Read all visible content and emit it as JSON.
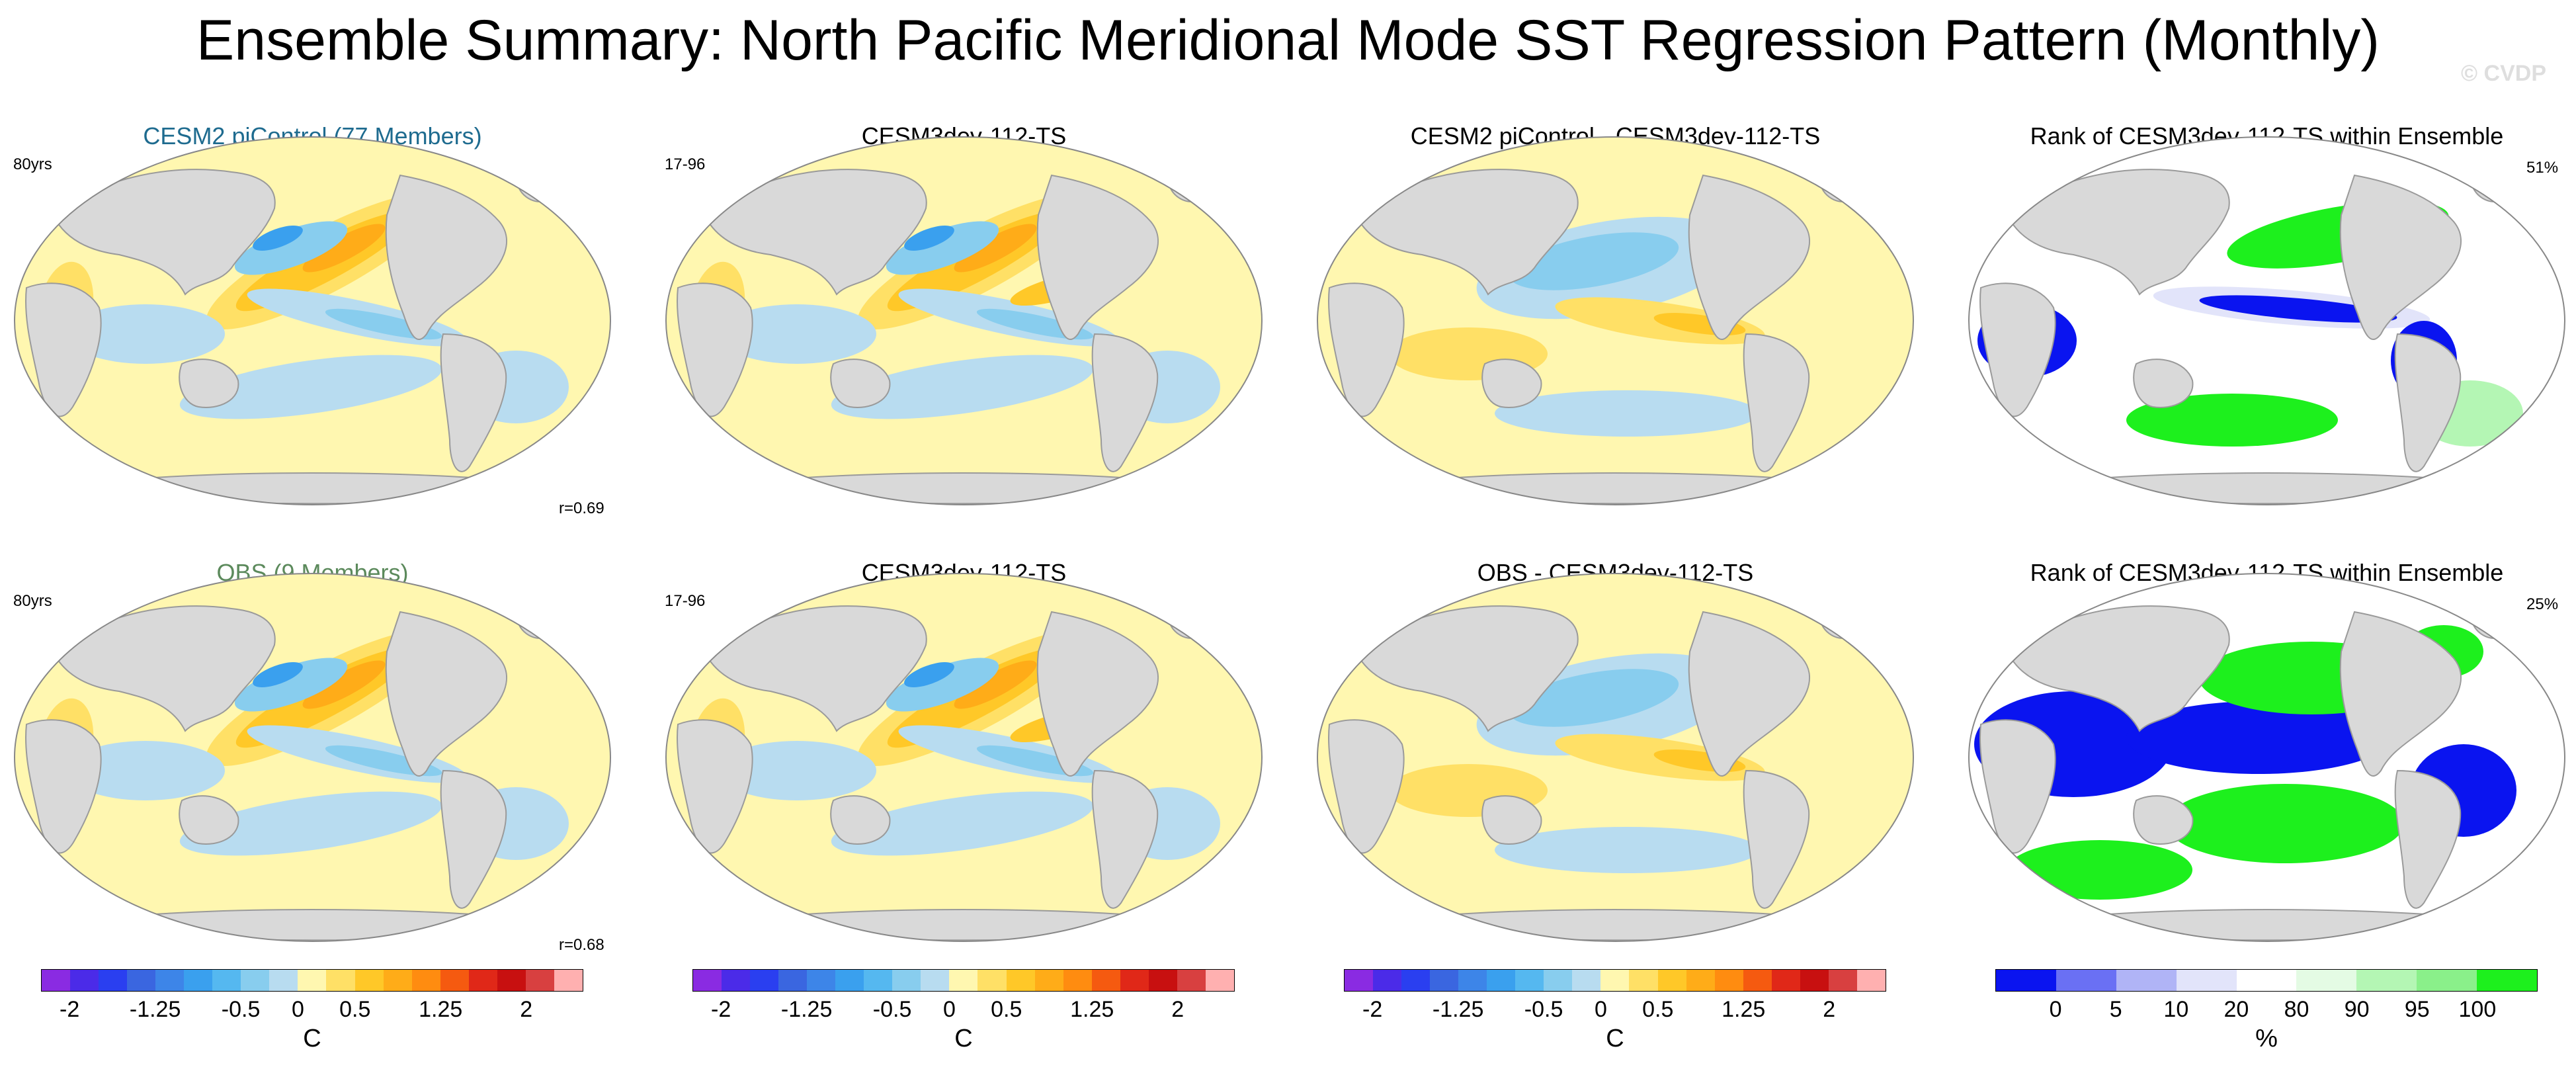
{
  "title": "Ensemble Summary: North Pacific Meridional Mode SST Regression Pattern (Monthly)",
  "watermark": "© CVDP",
  "chart_data": {
    "type": "heatmap",
    "description_type": "multi-panel global map figure",
    "rows": [
      {
        "panels": [
          {
            "title": "CESM2 piControl (77 Members)",
            "corner_label": "80yrs",
            "stat_label": "r=0.69",
            "kind": "regression"
          },
          {
            "title": "CESM3dev-112-TS",
            "corner_label": "17-96",
            "kind": "regression"
          },
          {
            "title": "CESM2 piControl - CESM3dev-112-TS",
            "kind": "difference"
          },
          {
            "title": "Rank of CESM3dev-112-TS within Ensemble",
            "corner_label": "51%",
            "kind": "rank"
          }
        ]
      },
      {
        "panels": [
          {
            "title": "OBS (9 Members)",
            "corner_label": "80yrs",
            "stat_label": "r=0.68",
            "kind": "regression"
          },
          {
            "title": "CESM3dev-112-TS",
            "corner_label": "17-96",
            "kind": "regression"
          },
          {
            "title": "OBS - CESM3dev-112-TS",
            "kind": "difference"
          },
          {
            "title": "Rank of CESM3dev-112-TS within Ensemble",
            "corner_label": "25%",
            "kind": "rank"
          }
        ]
      }
    ],
    "sst_colorbar": {
      "unit": "C",
      "tick_labels": [
        "-2",
        "-1.25",
        "-0.5",
        "0",
        "0.5",
        "1.25",
        "2"
      ],
      "levels": [
        -2,
        -1.75,
        -1.5,
        -1.25,
        -1,
        -0.75,
        -0.5,
        -0.25,
        0,
        0.25,
        0.5,
        0.75,
        1,
        1.25,
        1.5,
        1.75,
        2
      ],
      "colors": [
        "#8a2be2",
        "#4b2be8",
        "#2a3ff0",
        "#3a66e0",
        "#3d85e8",
        "#3aa0ee",
        "#55b8f0",
        "#88cdee",
        "#b8dcf0",
        "#fff7b0",
        "#ffe066",
        "#ffc828",
        "#ffac18",
        "#ff8c10",
        "#f55a10",
        "#e02818",
        "#c81010",
        "#d84040",
        "#ffb0b0"
      ]
    },
    "rank_colorbar": {
      "unit": "%",
      "tick_labels": [
        "0",
        "5",
        "10",
        "20",
        "80",
        "90",
        "95",
        "100"
      ],
      "levels": [
        0,
        5,
        10,
        20,
        80,
        90,
        95,
        100
      ],
      "colors": [
        "#0a14f0",
        "#6a70f4",
        "#b0b4f6",
        "#e2e4fa",
        "#ffffff",
        "#e4fbe4",
        "#b4f6b4",
        "#8af08a",
        "#1df01d"
      ]
    },
    "map_colors": {
      "land": "#d9d9d9",
      "ocean_neutral": "#fff7b0",
      "neg_light": "#b8dcf0",
      "neg_mid": "#88cdee",
      "neg_strong": "#3aa0ee",
      "pos_mid": "#ffe066",
      "pos_strong": "#ffc828",
      "pos_max": "#ffac18",
      "rank_low": "#0a14f0",
      "rank_lowmid": "#6a70f4",
      "rank_mid": "#e2e4fa",
      "rank_high": "#1df01d",
      "rank_highmid": "#b4f6b4"
    }
  }
}
